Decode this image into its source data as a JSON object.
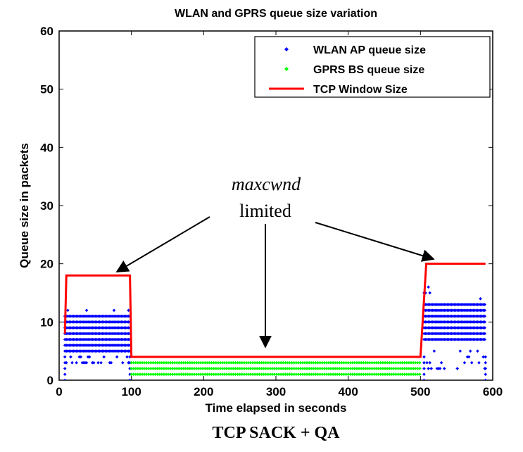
{
  "chart_data": {
    "type": "scatter",
    "title": "WLAN and GPRS queue size variation",
    "xlabel": "Time elapsed in seconds",
    "ylabel": "Queue size in packets",
    "xlim": [
      0,
      600
    ],
    "ylim": [
      0,
      60
    ],
    "x_ticks": [
      "0",
      "100",
      "200",
      "300",
      "400",
      "500",
      "600"
    ],
    "y_ticks": [
      "0",
      "10",
      "20",
      "30",
      "40",
      "50",
      "60"
    ],
    "legend_position": "top-right",
    "series": [
      {
        "name": "WLAN AP queue size",
        "kind": "scatter",
        "color": "#0000ff",
        "segments": [
          {
            "x_start": 8,
            "x_end": 98,
            "step": 2,
            "band_min": 5,
            "band_max": 11,
            "outliers_high": [
              12
            ],
            "outliers_low": [
              3,
              4
            ]
          },
          {
            "x_start": 505,
            "x_end": 590,
            "step": 2,
            "band_min": 7,
            "band_max": 13,
            "outliers_high": [
              14,
              15,
              16,
              18
            ],
            "outliers_low": [
              2,
              3,
              4,
              5
            ]
          }
        ]
      },
      {
        "name": "GPRS BS queue size",
        "kind": "scatter",
        "color": "#00ff00",
        "segments": [
          {
            "x_start": 100,
            "x_end": 500,
            "step": 3,
            "levels": [
              1,
              2,
              3
            ]
          }
        ]
      },
      {
        "name": "TCP Window Size",
        "kind": "line",
        "color": "#ff0000",
        "points": [
          [
            8,
            8
          ],
          [
            10,
            18
          ],
          [
            98,
            18
          ],
          [
            100,
            4
          ],
          [
            500,
            4
          ],
          [
            503,
            10
          ],
          [
            508,
            20
          ],
          [
            590,
            20
          ]
        ]
      }
    ],
    "annotations": [
      {
        "text_italic": "maxcwnd",
        "text": "limited"
      }
    ]
  },
  "caption": "TCP SACK + QA"
}
